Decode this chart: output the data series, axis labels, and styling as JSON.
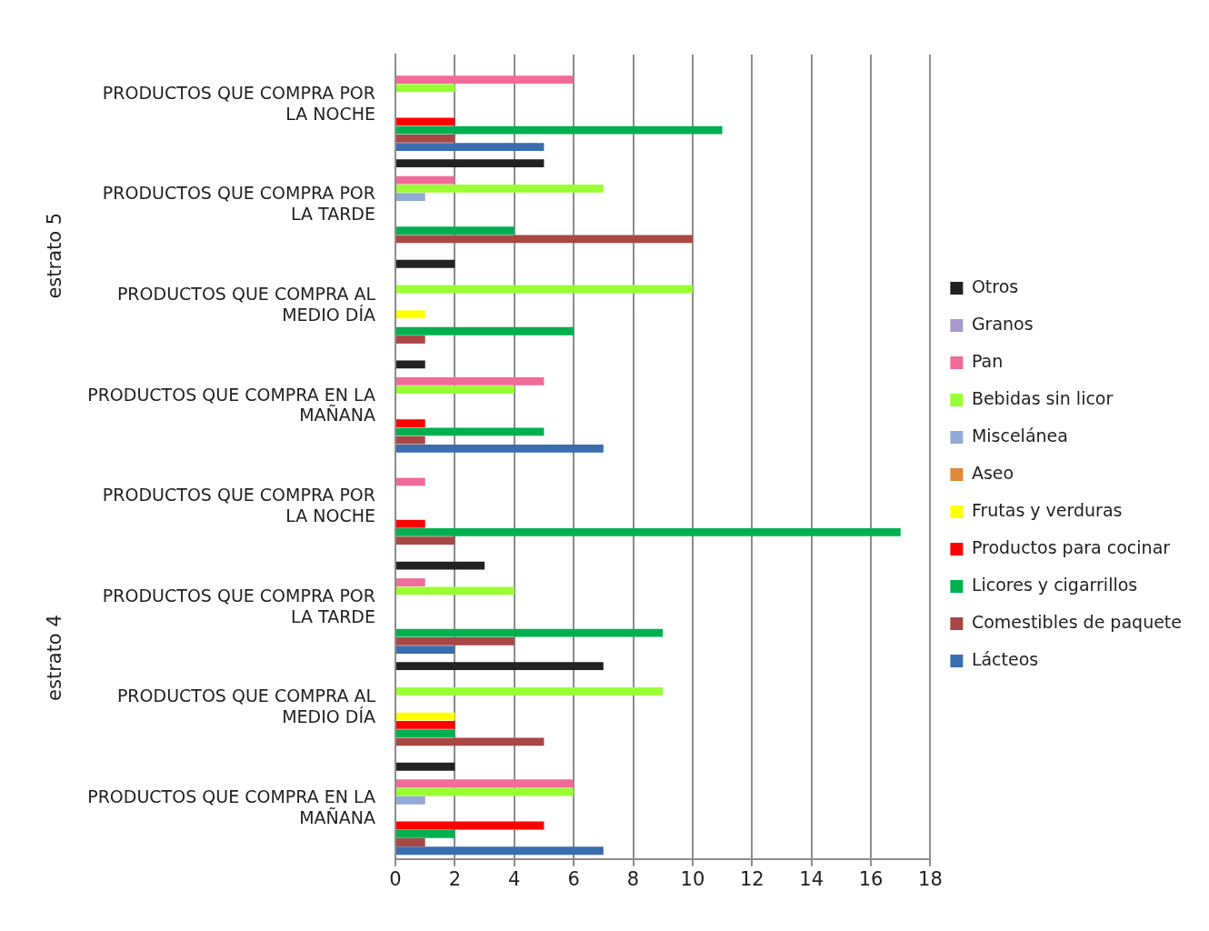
{
  "chart_data": {
    "type": "bar",
    "orientation": "horizontal",
    "categories": [
      "PRODUCTOS QUE COMPRA POR LA NOCHE",
      "PRODUCTOS QUE COMPRA POR LA TARDE",
      "PRODUCTOS QUE COMPRA AL MEDIO DÍA",
      "PRODUCTOS QUE COMPRA EN LA MAÑANA",
      "PRODUCTOS QUE COMPRA POR LA NOCHE",
      "PRODUCTOS QUE COMPRA POR LA TARDE",
      "PRODUCTOS QUE COMPRA AL MEDIO DÍA",
      "PRODUCTOS QUE COMPRA EN LA MAÑANA"
    ],
    "series": [
      {
        "name": "Otros",
        "color": "#222222",
        "values": [
          0,
          5,
          2,
          1,
          0,
          3,
          7,
          2
        ]
      },
      {
        "name": "Granos",
        "color": "#a899c8",
        "values": [
          0,
          0,
          0,
          0,
          0,
          0,
          0,
          0
        ]
      },
      {
        "name": "Pan",
        "color": "#f06a9a",
        "values": [
          6,
          2,
          0,
          5,
          1,
          1,
          0,
          6
        ]
      },
      {
        "name": "Bebidas sin licor",
        "color": "#99ff33",
        "values": [
          2,
          7,
          10,
          4,
          0,
          4,
          9,
          6
        ]
      },
      {
        "name": "Miscelánea",
        "color": "#93a9d8",
        "values": [
          0,
          1,
          0,
          0,
          0,
          0,
          0,
          1
        ]
      },
      {
        "name": "Aseo",
        "color": "#e08a3c",
        "values": [
          0,
          0,
          0,
          0,
          0,
          0,
          0,
          0
        ]
      },
      {
        "name": "Frutas y verduras",
        "color": "#ffff00",
        "values": [
          0,
          0,
          1,
          0,
          0,
          0,
          2,
          0
        ]
      },
      {
        "name": "Productos para cocinar",
        "color": "#ff0000",
        "values": [
          2,
          0,
          0,
          1,
          1,
          0,
          2,
          5
        ]
      },
      {
        "name": "Licores y cigarrillos",
        "color": "#00b050",
        "values": [
          11,
          4,
          6,
          5,
          17,
          9,
          2,
          2
        ]
      },
      {
        "name": "Comestibles de paquete",
        "color": "#a84744",
        "values": [
          2,
          10,
          1,
          1,
          2,
          4,
          5,
          1
        ]
      },
      {
        "name": "Lácteos",
        "color": "#3a6db0",
        "values": [
          5,
          0,
          0,
          7,
          0,
          2,
          0,
          7
        ]
      }
    ],
    "annotations": [
      "estrato 5",
      "estrato 4"
    ],
    "xlim": [
      0,
      18
    ],
    "xticks": [
      0,
      2,
      4,
      6,
      8,
      10,
      12,
      14,
      16,
      18
    ],
    "grid": "x",
    "legend": "right"
  }
}
